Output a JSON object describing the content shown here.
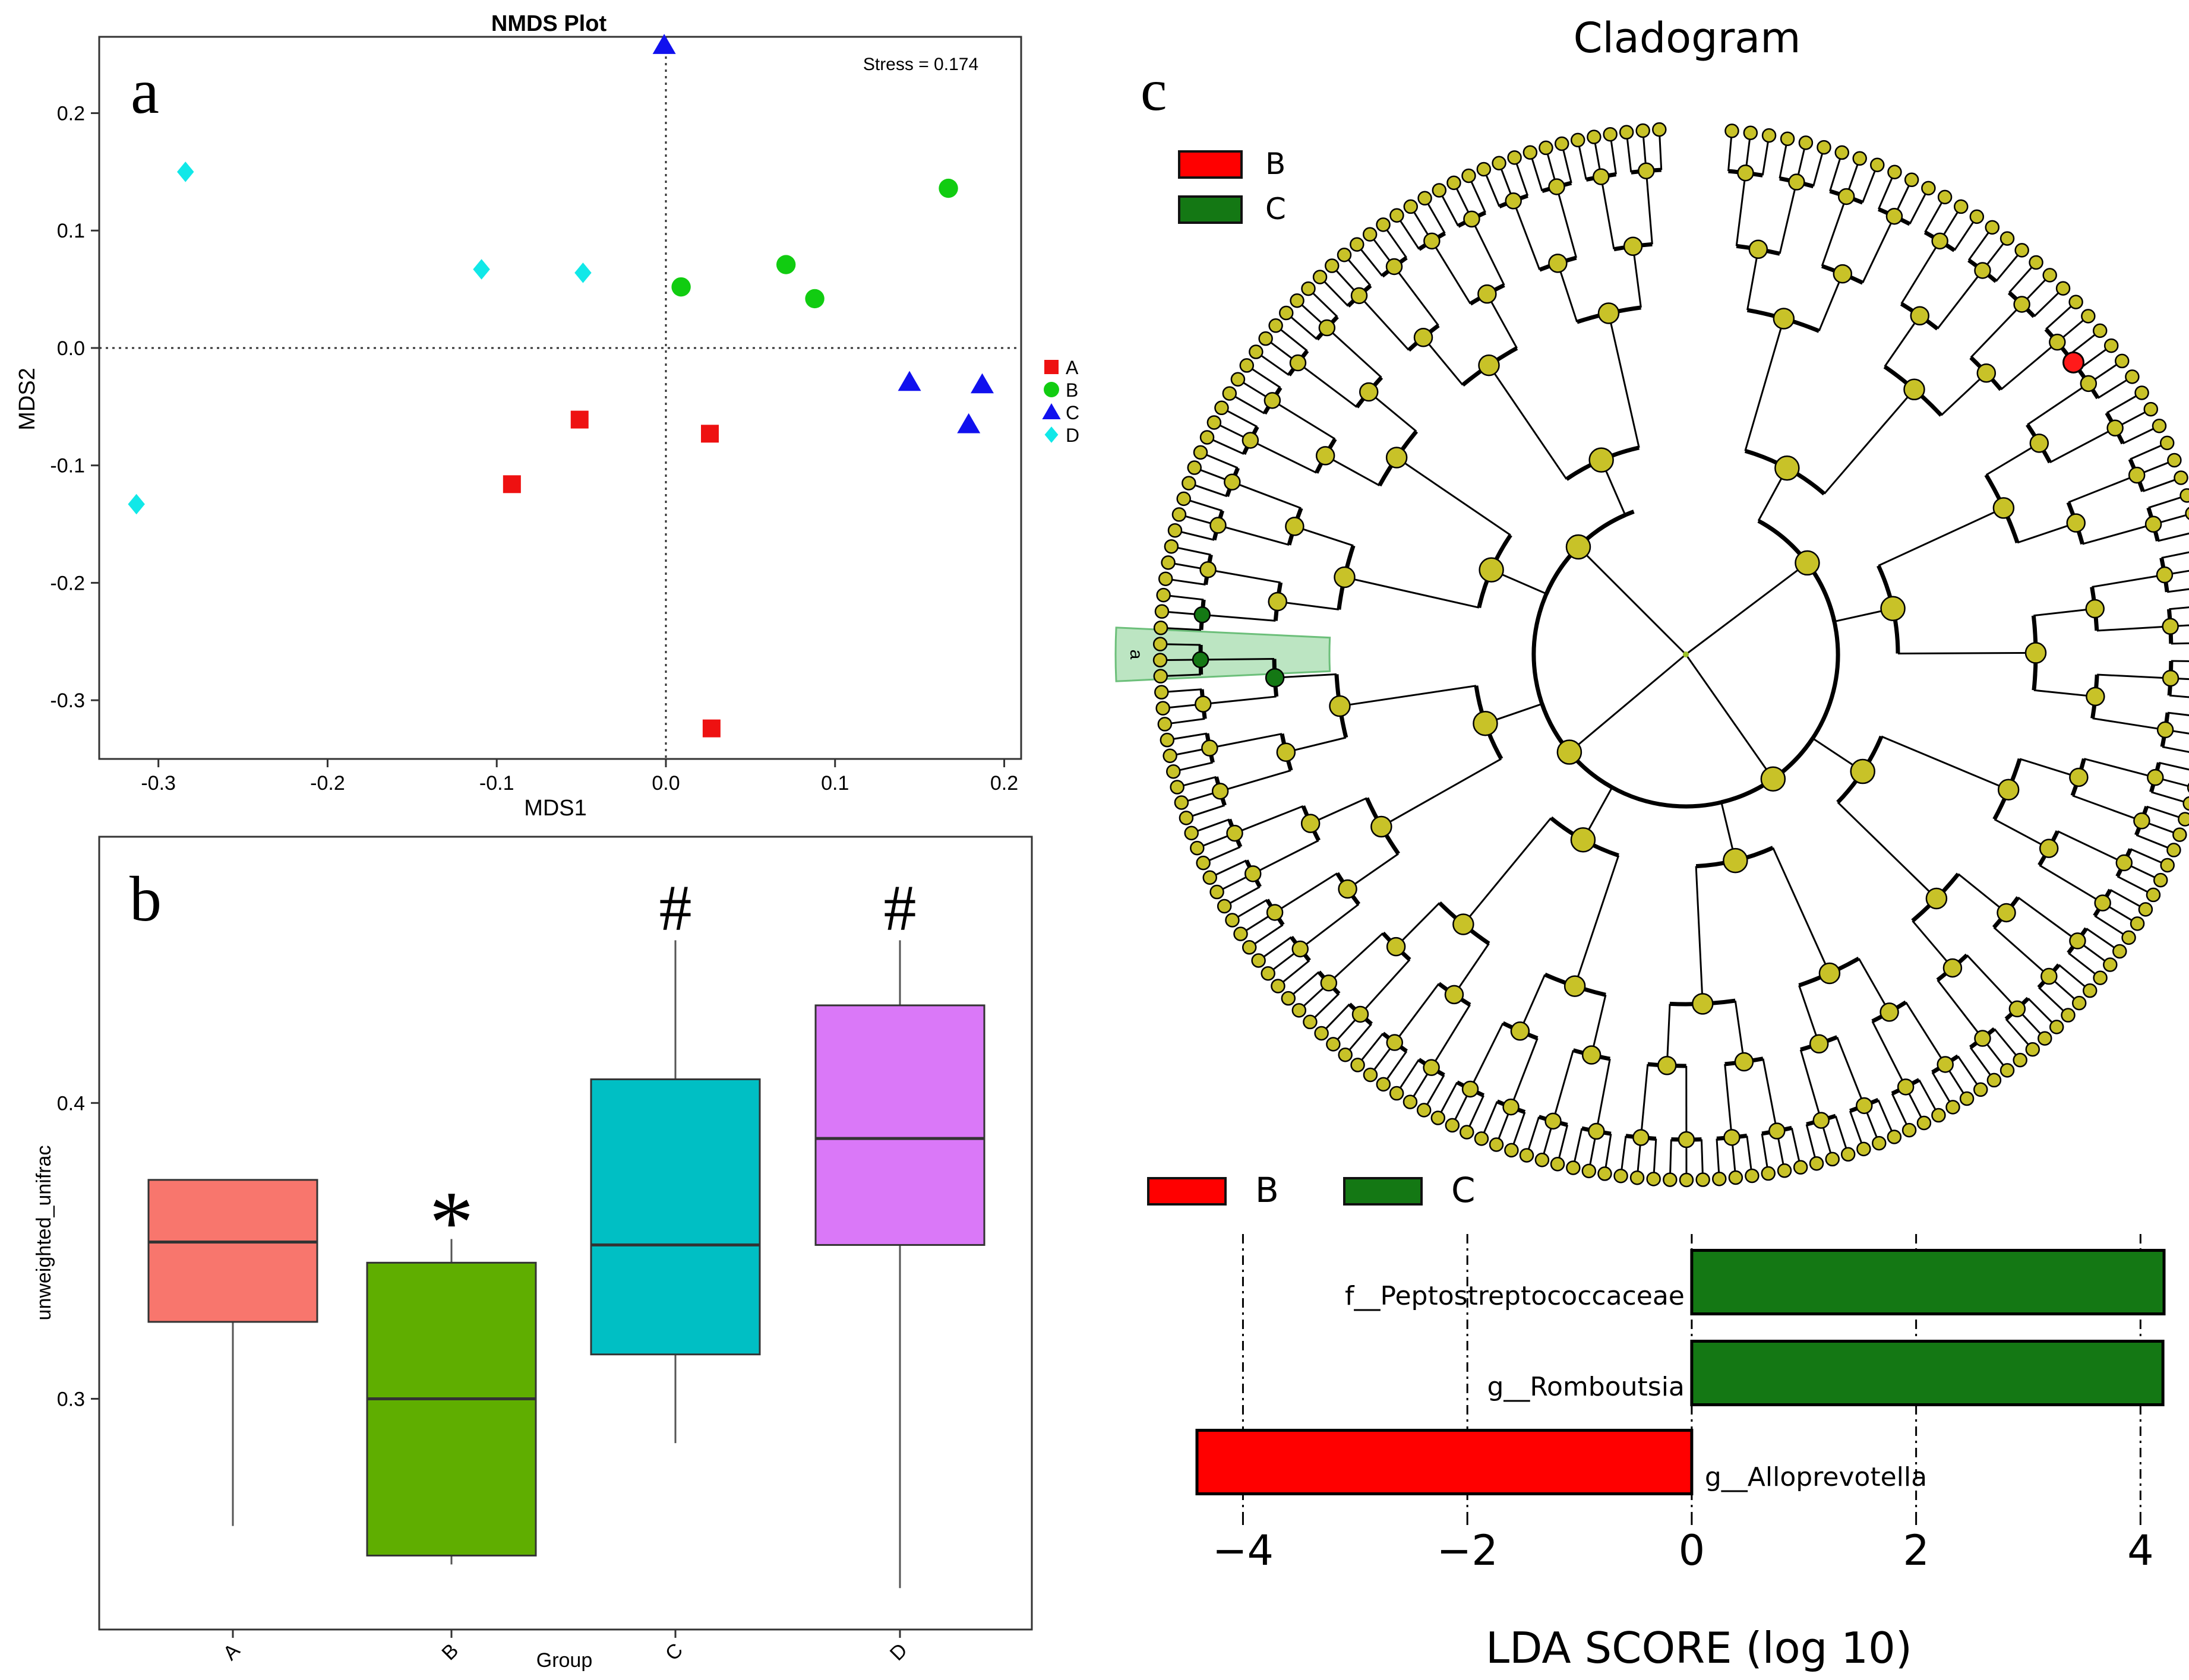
{
  "panel_letters": {
    "a": "a",
    "b": "b",
    "c": "c"
  },
  "chart_data": [
    {
      "id": "nmds",
      "type": "scatter",
      "title": "NMDS Plot",
      "annotation": "Stress = 0.174",
      "xlabel": "MDS1",
      "ylabel": "MDS2",
      "xlim": [
        -0.335,
        0.21
      ],
      "ylim": [
        -0.35,
        0.265
      ],
      "x_ticks": [
        -0.3,
        -0.2,
        -0.1,
        0.0,
        0.1,
        0.2
      ],
      "x_tick_labels": [
        "-0.3",
        "-0.2",
        "-0.1",
        "0.0",
        "0.1",
        "0.2"
      ],
      "y_ticks": [
        -0.3,
        -0.2,
        -0.1,
        0.0,
        0.1,
        0.2
      ],
      "y_tick_labels": [
        "-0.3",
        "-0.2",
        "-0.1",
        "0.0",
        "0.1",
        "0.2"
      ],
      "legend_position": "right",
      "series": [
        {
          "name": "A",
          "color": "#ee1111",
          "marker": "square",
          "points": [
            [
              -0.091,
              -0.116
            ],
            [
              -0.051,
              -0.061
            ],
            [
              0.026,
              -0.073
            ],
            [
              0.027,
              -0.324
            ]
          ]
        },
        {
          "name": "B",
          "color": "#11cc11",
          "marker": "circle",
          "points": [
            [
              0.009,
              0.052
            ],
            [
              0.071,
              0.071
            ],
            [
              0.088,
              0.042
            ],
            [
              0.167,
              0.136
            ]
          ]
        },
        {
          "name": "C",
          "color": "#1111ee",
          "marker": "triangle",
          "points": [
            [
              -0.001,
              0.258
            ],
            [
              0.144,
              -0.029
            ],
            [
              0.179,
              -0.065
            ],
            [
              0.187,
              -0.031
            ]
          ]
        },
        {
          "name": "D",
          "color": "#11e8e8",
          "marker": "diamond",
          "points": [
            [
              -0.284,
              0.15
            ],
            [
              -0.109,
              0.067
            ],
            [
              -0.049,
              0.064
            ],
            [
              -0.313,
              -0.133
            ]
          ]
        }
      ]
    },
    {
      "id": "boxplot",
      "type": "box",
      "xlabel": "Group",
      "ylabel": "unweighted_unifrac",
      "ylim": [
        0.222,
        0.49
      ],
      "y_ticks": [
        0.3,
        0.4
      ],
      "y_tick_labels": [
        "0.3",
        "0.4"
      ],
      "groups": [
        {
          "name": "A",
          "color": "#f8766d",
          "min": 0.257,
          "q1": 0.326,
          "median": 0.353,
          "q3": 0.374,
          "max": 0.374,
          "mark": ""
        },
        {
          "name": "B",
          "color": "#5fae00",
          "min": 0.244,
          "q1": 0.247,
          "median": 0.3,
          "q3": 0.346,
          "max": 0.354,
          "mark": "*"
        },
        {
          "name": "C",
          "color": "#00bfc4",
          "min": 0.285,
          "q1": 0.315,
          "median": 0.352,
          "q3": 0.408,
          "max": 0.455,
          "mark": "#"
        },
        {
          "name": "D",
          "color": "#da78f8",
          "min": 0.236,
          "q1": 0.352,
          "median": 0.388,
          "q3": 0.433,
          "max": 0.455,
          "mark": "#"
        }
      ]
    },
    {
      "id": "cladogram",
      "type": "cladogram",
      "title": "Cladogram",
      "legend": [
        {
          "name": "B",
          "color": "#ff0000"
        },
        {
          "name": "C",
          "color": "#147814"
        }
      ],
      "node_color": "#c8c228",
      "highlight_label": "a"
    },
    {
      "id": "lda",
      "type": "bar",
      "orientation": "horizontal",
      "xlabel": "LDA SCORE (log 10)",
      "xlim": [
        -4.6,
        4.25
      ],
      "x_ticks": [
        -4,
        -2,
        0,
        2,
        4
      ],
      "x_tick_labels": [
        "−4",
        "−2",
        "0",
        "2",
        "4"
      ],
      "legend": [
        {
          "name": "B",
          "color": "#ff0000"
        },
        {
          "name": "C",
          "color": "#147814"
        }
      ],
      "bars": [
        {
          "label": "f__Peptostreptococcaceae",
          "value": 4.21,
          "group": "C",
          "color": "#147814"
        },
        {
          "label": "g__Romboutsia",
          "value": 4.2,
          "group": "C",
          "color": "#147814"
        },
        {
          "label": "g__Alloprevotella",
          "value": -4.41,
          "group": "B",
          "color": "#ff0000"
        }
      ]
    }
  ]
}
